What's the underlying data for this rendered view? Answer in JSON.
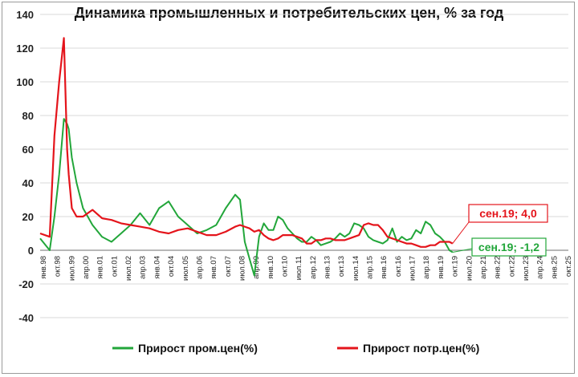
{
  "chart_data": {
    "type": "line",
    "title": "Динамика промышленных и потребительских цен, % за год",
    "ylim": [
      -40,
      140
    ],
    "yticks": [
      -40,
      -20,
      0,
      20,
      40,
      60,
      80,
      100,
      120,
      140
    ],
    "grid": true,
    "legend_position": "bottom",
    "x_tick_labels": [
      "янв.98",
      "окт.98",
      "июл.99",
      "апр.00",
      "янв.01",
      "окт.01",
      "июл.02",
      "апр.03",
      "янв.04",
      "окт.04",
      "июл.05",
      "апр.06",
      "янв.07",
      "окт.07",
      "июл.08",
      "апр.09",
      "янв.10",
      "окт.10",
      "июл.11",
      "апр.12",
      "янв.13",
      "окт.13",
      "июл.14",
      "апр.15",
      "янв.16",
      "окт.16",
      "июл.17",
      "апр.18",
      "янв.19",
      "окт.19",
      "июл.20",
      "апр.21",
      "янв.22",
      "окт.22",
      "июл.23",
      "апр.24",
      "янв.25",
      "окт.25"
    ],
    "x": [
      "1998-01",
      "1998-07",
      "1998-10",
      "1999-01",
      "1999-04",
      "1999-06",
      "1999-07",
      "1999-09",
      "1999-12",
      "2000-04",
      "2000-10",
      "2001-04",
      "2001-10",
      "2002-04",
      "2002-10",
      "2003-04",
      "2003-10",
      "2004-04",
      "2004-10",
      "2005-04",
      "2005-10",
      "2006-04",
      "2006-10",
      "2007-04",
      "2007-10",
      "2008-04",
      "2008-07",
      "2008-10",
      "2009-01",
      "2009-04",
      "2009-07",
      "2009-10",
      "2010-01",
      "2010-04",
      "2010-07",
      "2010-10",
      "2011-01",
      "2011-04",
      "2011-07",
      "2011-10",
      "2012-01",
      "2012-04",
      "2012-07",
      "2012-10",
      "2013-01",
      "2013-04",
      "2013-07",
      "2013-10",
      "2014-01",
      "2014-04",
      "2014-07",
      "2014-10",
      "2015-01",
      "2015-04",
      "2015-07",
      "2015-10",
      "2016-01",
      "2016-04",
      "2016-07",
      "2016-10",
      "2017-01",
      "2017-04",
      "2017-07",
      "2017-10",
      "2018-01",
      "2018-04",
      "2018-07",
      "2018-10",
      "2019-01",
      "2019-04",
      "2019-07",
      "2019-09"
    ],
    "series": [
      {
        "name": "Прирост пром.цен(%)",
        "color": "#22a63a",
        "values": [
          7,
          0,
          20,
          45,
          78,
          75,
          72,
          55,
          40,
          25,
          15,
          8,
          5,
          10,
          15,
          22,
          15,
          25,
          29,
          20,
          15,
          10,
          12,
          15,
          25,
          33,
          30,
          5,
          -5,
          -15,
          8,
          16,
          12,
          12,
          20,
          18,
          13,
          10,
          7,
          5,
          5,
          8,
          6,
          3,
          4,
          5,
          7,
          10,
          8,
          10,
          16,
          15,
          13,
          8,
          6,
          5,
          4,
          6,
          13,
          5,
          8,
          6,
          7,
          12,
          10,
          17,
          15,
          10,
          8,
          5,
          0,
          -1.2
        ]
      },
      {
        "name": "Прирост потр.цен(%)",
        "color": "#e4141b",
        "values": [
          10,
          8,
          68,
          100,
          126,
          60,
          45,
          25,
          20,
          20,
          24,
          19,
          18,
          16,
          15,
          14,
          13,
          11,
          10,
          12,
          13,
          11,
          9,
          9,
          11,
          14,
          15,
          14,
          13,
          11,
          12,
          9,
          7,
          6,
          7,
          9,
          9,
          9,
          8,
          7,
          4,
          4,
          6,
          6,
          7,
          7,
          6,
          6,
          6,
          7,
          8,
          9,
          15,
          16,
          15,
          15,
          12,
          8,
          7,
          6,
          5,
          4,
          4,
          3,
          2,
          2,
          3,
          3,
          5,
          5,
          5,
          4.0
        ]
      }
    ],
    "annotations": [
      {
        "text": "сен.19; 4,0",
        "color": "#e4141b"
      },
      {
        "text": "сен.19; -1,2",
        "color": "#22a63a"
      }
    ]
  }
}
